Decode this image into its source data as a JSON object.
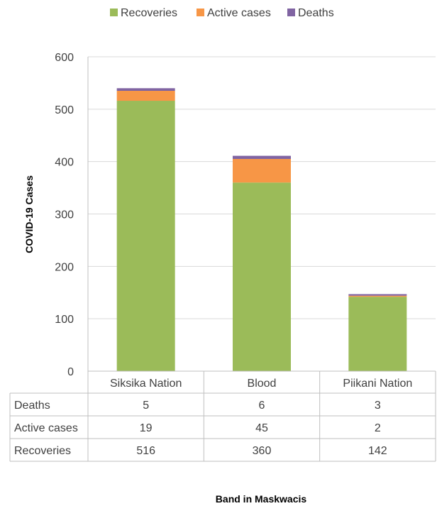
{
  "chart_data": {
    "type": "bar",
    "stacked": true,
    "categories": [
      "Siksika Nation",
      "Blood",
      "Piikani Nation"
    ],
    "series": [
      {
        "name": "Recoveries",
        "color": "#9bbb59",
        "values": [
          516,
          360,
          142
        ]
      },
      {
        "name": "Active cases",
        "color": "#f79646",
        "values": [
          19,
          45,
          2
        ]
      },
      {
        "name": "Deaths",
        "color": "#8064a2",
        "values": [
          5,
          6,
          3
        ]
      }
    ],
    "table_rows": [
      "Deaths",
      "Active cases",
      "Recoveries"
    ],
    "ylabel": "COVID-19 Cases",
    "xlabel": "Band in Maskwacis",
    "ylim": [
      0,
      600
    ],
    "yticks": [
      0,
      100,
      200,
      300,
      400,
      500,
      600
    ],
    "grid": true,
    "legend_position": "top-center"
  }
}
